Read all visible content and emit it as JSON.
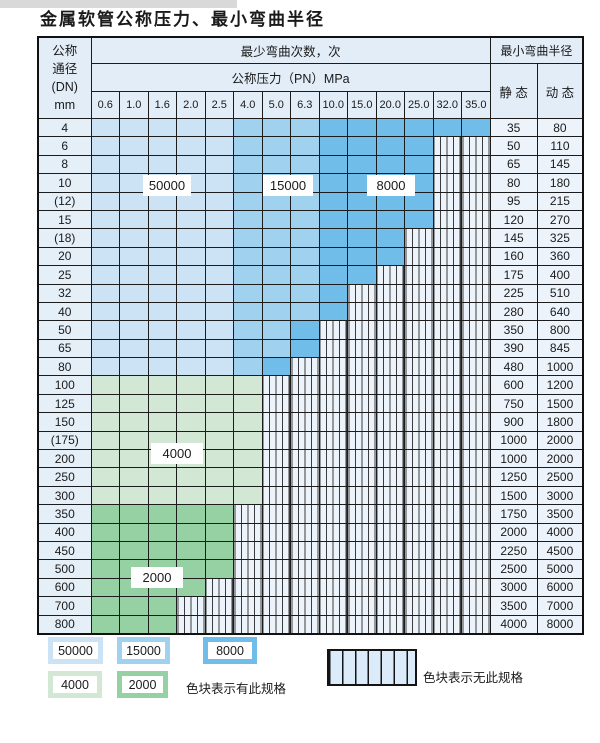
{
  "title": "金属软管公称压力、最小弯曲半径",
  "colors": {
    "cycles_50000": "#cbe3f5",
    "cycles_15000": "#a0d1ee",
    "cycles_8000": "#6fbde8",
    "cycles_4000": "#d3e8d4",
    "cycles_2000": "#95d1a2",
    "no_spec_bg": "#ecf3fa",
    "grid_line": "#1c1c1c"
  },
  "table": {
    "header": {
      "dn_lines": [
        "公称",
        "通径",
        "(DN)",
        "mm"
      ],
      "cycles_header": "最少弯曲次数，次",
      "radius_header": "最小弯曲半径",
      "pressure_header": "公称压力（PN）MPa",
      "pressure_cols": [
        "0.6",
        "1.0",
        "1.6",
        "2.0",
        "2.5",
        "4.0",
        "5.0",
        "6.3",
        "10.0",
        "15.0",
        "20.0",
        "25.0",
        "32.0",
        "35.0"
      ],
      "static_label": "静 态",
      "dynamic_label": "动 态"
    },
    "rows": [
      {
        "dn": "4",
        "static": "35",
        "dynamic": "80",
        "cells": [
          "b50",
          "b50",
          "b50",
          "b50",
          "b50",
          "b15",
          "b15",
          "b15",
          "b8",
          "b8",
          "b8",
          "b8",
          "b8",
          "b8"
        ]
      },
      {
        "dn": "6",
        "static": "50",
        "dynamic": "110",
        "cells": [
          "b50",
          "b50",
          "b50",
          "b50",
          "b50",
          "b15",
          "b15",
          "b15",
          "b8",
          "b8",
          "b8",
          "b8",
          "no",
          "no"
        ]
      },
      {
        "dn": "8",
        "static": "65",
        "dynamic": "145",
        "cells": [
          "b50",
          "b50",
          "b50",
          "b50",
          "b50",
          "b15",
          "b15",
          "b15",
          "b8",
          "b8",
          "b8",
          "b8",
          "no",
          "no"
        ]
      },
      {
        "dn": "10",
        "static": "80",
        "dynamic": "180",
        "cells": [
          "b50",
          "b50",
          "b50",
          "b50",
          "b50",
          "b15",
          "b15",
          "b15",
          "b8",
          "b8",
          "b8",
          "b8",
          "no",
          "no"
        ]
      },
      {
        "dn": "(12)",
        "static": "95",
        "dynamic": "215",
        "cells": [
          "b50",
          "b50",
          "b50",
          "b50",
          "b50",
          "b15",
          "b15",
          "b15",
          "b8",
          "b8",
          "b8",
          "b8",
          "no",
          "no"
        ]
      },
      {
        "dn": "15",
        "static": "120",
        "dynamic": "270",
        "cells": [
          "b50",
          "b50",
          "b50",
          "b50",
          "b50",
          "b15",
          "b15",
          "b15",
          "b8",
          "b8",
          "b8",
          "b8",
          "no",
          "no"
        ]
      },
      {
        "dn": "(18)",
        "static": "145",
        "dynamic": "325",
        "cells": [
          "b50",
          "b50",
          "b50",
          "b50",
          "b50",
          "b15",
          "b15",
          "b15",
          "b8",
          "b8",
          "b8",
          "no",
          "no",
          "no"
        ]
      },
      {
        "dn": "20",
        "static": "160",
        "dynamic": "360",
        "cells": [
          "b50",
          "b50",
          "b50",
          "b50",
          "b50",
          "b15",
          "b15",
          "b15",
          "b8",
          "b8",
          "b8",
          "no",
          "no",
          "no"
        ]
      },
      {
        "dn": "25",
        "static": "175",
        "dynamic": "400",
        "cells": [
          "b50",
          "b50",
          "b50",
          "b50",
          "b50",
          "b15",
          "b15",
          "b15",
          "b8",
          "b8",
          "no",
          "no",
          "no",
          "no"
        ]
      },
      {
        "dn": "32",
        "static": "225",
        "dynamic": "510",
        "cells": [
          "b50",
          "b50",
          "b50",
          "b50",
          "b50",
          "b15",
          "b15",
          "b15",
          "b8",
          "no",
          "no",
          "no",
          "no",
          "no"
        ]
      },
      {
        "dn": "40",
        "static": "280",
        "dynamic": "640",
        "cells": [
          "b50",
          "b50",
          "b50",
          "b50",
          "b50",
          "b15",
          "b15",
          "b15",
          "b8",
          "no",
          "no",
          "no",
          "no",
          "no"
        ]
      },
      {
        "dn": "50",
        "static": "350",
        "dynamic": "800",
        "cells": [
          "b50",
          "b50",
          "b50",
          "b50",
          "b50",
          "b15",
          "b15",
          "b8",
          "no",
          "no",
          "no",
          "no",
          "no",
          "no"
        ]
      },
      {
        "dn": "65",
        "static": "390",
        "dynamic": "845",
        "cells": [
          "b50",
          "b50",
          "b50",
          "b50",
          "b50",
          "b15",
          "b15",
          "b8",
          "no",
          "no",
          "no",
          "no",
          "no",
          "no"
        ]
      },
      {
        "dn": "80",
        "static": "480",
        "dynamic": "1000",
        "cells": [
          "b50",
          "b50",
          "b50",
          "b50",
          "b50",
          "b15",
          "b8",
          "no",
          "no",
          "no",
          "no",
          "no",
          "no",
          "no"
        ]
      },
      {
        "dn": "100",
        "static": "600",
        "dynamic": "1200",
        "cells": [
          "g4",
          "g4",
          "g4",
          "g4",
          "g4",
          "g4",
          "no",
          "no",
          "no",
          "no",
          "no",
          "no",
          "no",
          "no"
        ]
      },
      {
        "dn": "125",
        "static": "750",
        "dynamic": "1500",
        "cells": [
          "g4",
          "g4",
          "g4",
          "g4",
          "g4",
          "g4",
          "no",
          "no",
          "no",
          "no",
          "no",
          "no",
          "no",
          "no"
        ]
      },
      {
        "dn": "150",
        "static": "900",
        "dynamic": "1800",
        "cells": [
          "g4",
          "g4",
          "g4",
          "g4",
          "g4",
          "g4",
          "no",
          "no",
          "no",
          "no",
          "no",
          "no",
          "no",
          "no"
        ]
      },
      {
        "dn": "(175)",
        "static": "1000",
        "dynamic": "2000",
        "cells": [
          "g4",
          "g4",
          "g4",
          "g4",
          "g4",
          "g4",
          "no",
          "no",
          "no",
          "no",
          "no",
          "no",
          "no",
          "no"
        ]
      },
      {
        "dn": "200",
        "static": "1000",
        "dynamic": "2000",
        "cells": [
          "g4",
          "g4",
          "g4",
          "g4",
          "g4",
          "g4",
          "no",
          "no",
          "no",
          "no",
          "no",
          "no",
          "no",
          "no"
        ]
      },
      {
        "dn": "250",
        "static": "1250",
        "dynamic": "2500",
        "cells": [
          "g4",
          "g4",
          "g4",
          "g4",
          "g4",
          "g4",
          "no",
          "no",
          "no",
          "no",
          "no",
          "no",
          "no",
          "no"
        ]
      },
      {
        "dn": "300",
        "static": "1500",
        "dynamic": "3000",
        "cells": [
          "g4",
          "g4",
          "g4",
          "g4",
          "g4",
          "g4",
          "no",
          "no",
          "no",
          "no",
          "no",
          "no",
          "no",
          "no"
        ]
      },
      {
        "dn": "350",
        "static": "1750",
        "dynamic": "3500",
        "cells": [
          "g2",
          "g2",
          "g2",
          "g2",
          "g2",
          "no",
          "no",
          "no",
          "no",
          "no",
          "no",
          "no",
          "no",
          "no"
        ]
      },
      {
        "dn": "400",
        "static": "2000",
        "dynamic": "4000",
        "cells": [
          "g2",
          "g2",
          "g2",
          "g2",
          "g2",
          "no",
          "no",
          "no",
          "no",
          "no",
          "no",
          "no",
          "no",
          "no"
        ]
      },
      {
        "dn": "450",
        "static": "2250",
        "dynamic": "4500",
        "cells": [
          "g2",
          "g2",
          "g2",
          "g2",
          "g2",
          "no",
          "no",
          "no",
          "no",
          "no",
          "no",
          "no",
          "no",
          "no"
        ]
      },
      {
        "dn": "500",
        "static": "2500",
        "dynamic": "5000",
        "cells": [
          "g2",
          "g2",
          "g2",
          "g2",
          "g2",
          "no",
          "no",
          "no",
          "no",
          "no",
          "no",
          "no",
          "no",
          "no"
        ]
      },
      {
        "dn": "600",
        "static": "3000",
        "dynamic": "6000",
        "cells": [
          "g2",
          "g2",
          "g2",
          "g2",
          "no",
          "no",
          "no",
          "no",
          "no",
          "no",
          "no",
          "no",
          "no",
          "no"
        ]
      },
      {
        "dn": "700",
        "static": "3500",
        "dynamic": "7000",
        "cells": [
          "g2",
          "g2",
          "g2",
          "no",
          "no",
          "no",
          "no",
          "no",
          "no",
          "no",
          "no",
          "no",
          "no",
          "no"
        ]
      },
      {
        "dn": "800",
        "static": "4000",
        "dynamic": "8000",
        "cells": [
          "g2",
          "g2",
          "g2",
          "no",
          "no",
          "no",
          "no",
          "no",
          "no",
          "no",
          "no",
          "no",
          "no",
          "no"
        ]
      }
    ]
  },
  "overlays": {
    "l50000": "50000",
    "l15000": "15000",
    "l8000": "8000",
    "l4000": "4000",
    "l2000": "2000"
  },
  "legend": {
    "swatches": [
      {
        "label": "50000",
        "color_key": "cycles_50000"
      },
      {
        "label": "15000",
        "color_key": "cycles_15000"
      },
      {
        "label": "8000",
        "color_key": "cycles_8000"
      },
      {
        "label": "4000",
        "color_key": "cycles_4000"
      },
      {
        "label": "2000",
        "color_key": "cycles_2000"
      }
    ],
    "has_spec_text": "色块表示有此规格",
    "no_spec_text": "色块表示无此规格"
  }
}
